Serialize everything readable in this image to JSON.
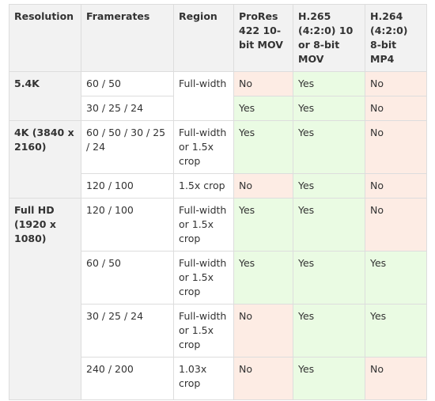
{
  "headers": {
    "resolution": "Resolution",
    "framerates": "Framerates",
    "region": "Region",
    "prores": "ProRes 422 10-bit MOV",
    "h265": "H.265 (4:2:0) 10 or 8-bit MOV",
    "h264": "H.264 (4:2:0) 8-bit MP4"
  },
  "rows": {
    "r54k_a": {
      "resolution": "5.4K",
      "framerates": "60 / 50",
      "region": "Full-width",
      "prores": "No",
      "h265": "Yes",
      "h264": "No"
    },
    "r54k_b": {
      "framerates": "30 / 25 / 24",
      "prores": "Yes",
      "h265": "Yes",
      "h264": "No"
    },
    "r4k_a": {
      "resolution": "4K (3840 x 2160)",
      "framerates": "60 / 50 / 30 / 25 / 24",
      "region": "Full-width or 1.5x crop",
      "prores": "Yes",
      "h265": "Yes",
      "h264": "No"
    },
    "r4k_b": {
      "framerates": "120 / 100",
      "region": "1.5x crop",
      "prores": "No",
      "h265": "Yes",
      "h264": "No"
    },
    "rfhd_a": {
      "resolution": "Full HD (1920 x 1080)",
      "framerates": "120 / 100",
      "region": "Full-width or 1.5x crop",
      "prores": "Yes",
      "h265": "Yes",
      "h264": "No"
    },
    "rfhd_b": {
      "framerates": "60 / 50",
      "region": "Full-width or 1.5x crop",
      "prores": "Yes",
      "h265": "Yes",
      "h264": "Yes"
    },
    "rfhd_c": {
      "framerates": "30 / 25 / 24",
      "region": "Full-width or 1.5x crop",
      "prores": "No",
      "h265": "Yes",
      "h264": "Yes"
    },
    "rfhd_d": {
      "framerates": "240 / 200",
      "region": "1.03x crop",
      "prores": "No",
      "h265": "Yes",
      "h264": "No"
    }
  },
  "colors": {
    "yes_bg": "#eafbe3",
    "no_bg": "#fdece4",
    "header_bg": "#f2f2f2",
    "border": "#dddddd"
  }
}
